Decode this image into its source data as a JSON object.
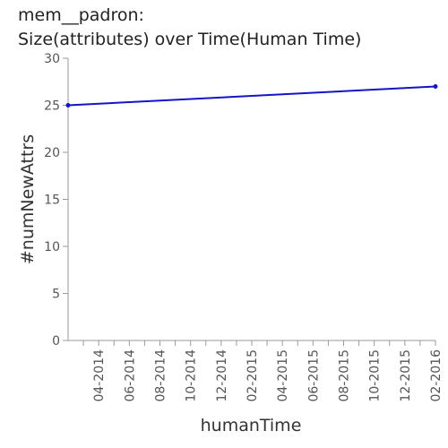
{
  "chart_data": {
    "type": "line",
    "title_lines": [
      "mem__padron:",
      "Size(attributes) over Time(Human Time)"
    ],
    "xlabel": "humanTime",
    "ylabel": "#numNewAttrs",
    "ylim": [
      0,
      30
    ],
    "yticks": [
      0,
      5,
      10,
      15,
      20,
      25,
      30
    ],
    "xlim": [
      "2014-02-01",
      "2016-02-01"
    ],
    "xticks": [
      "04-2014",
      "06-2014",
      "08-2014",
      "10-2014",
      "12-2014",
      "02-2015",
      "04-2015",
      "06-2015",
      "08-2015",
      "10-2015",
      "12-2015",
      "02-2016"
    ],
    "series": [
      {
        "x": [
          "2014-02-01",
          "2016-02-01"
        ],
        "values": [
          25,
          27
        ],
        "color": "#1414c8"
      }
    ],
    "grid": false,
    "legend": "none"
  }
}
